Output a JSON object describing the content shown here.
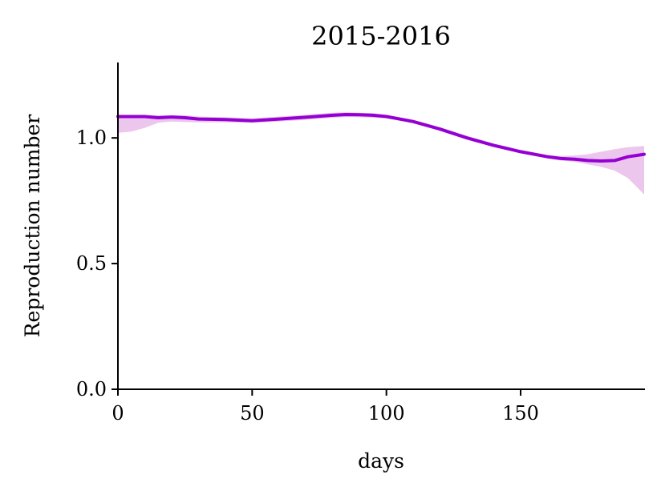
{
  "chart_data": {
    "type": "line",
    "title": "2015-2016",
    "xlabel": "days",
    "ylabel": "Reproduction number",
    "xlim": [
      0,
      196
    ],
    "ylim": [
      0,
      1.3
    ],
    "xticks": [
      0,
      50,
      100,
      150
    ],
    "xtick_labels": [
      "0",
      "50",
      "100",
      "150"
    ],
    "yticks": [
      0.0,
      0.5,
      1.0
    ],
    "ytick_labels": [
      "0.0",
      "0.5",
      "1.0"
    ],
    "grid": false,
    "colors": {
      "line": "#9400d3",
      "band": "#ecc6ec"
    },
    "series": [
      {
        "x": [
          0,
          5,
          10,
          15,
          20,
          25,
          30,
          40,
          50,
          60,
          70,
          80,
          85,
          90,
          95,
          100,
          110,
          120,
          130,
          140,
          150,
          160,
          165,
          170,
          175,
          180,
          185,
          190,
          196
        ],
        "y": [
          1.085,
          1.085,
          1.085,
          1.08,
          1.083,
          1.08,
          1.075,
          1.073,
          1.068,
          1.075,
          1.082,
          1.09,
          1.093,
          1.092,
          1.09,
          1.085,
          1.065,
          1.035,
          1.0,
          0.97,
          0.945,
          0.925,
          0.918,
          0.915,
          0.91,
          0.908,
          0.91,
          0.925,
          0.935
        ],
        "lower": [
          1.02,
          1.025,
          1.04,
          1.06,
          1.065,
          1.063,
          1.062,
          1.062,
          1.06,
          1.065,
          1.072,
          1.08,
          1.083,
          1.082,
          1.08,
          1.078,
          1.06,
          1.03,
          0.995,
          0.965,
          0.94,
          0.918,
          0.91,
          0.905,
          0.895,
          0.885,
          0.87,
          0.84,
          0.775
        ],
        "upper": [
          1.09,
          1.09,
          1.09,
          1.09,
          1.09,
          1.09,
          1.085,
          1.082,
          1.078,
          1.085,
          1.092,
          1.1,
          1.102,
          1.1,
          1.098,
          1.092,
          1.072,
          1.042,
          1.008,
          0.978,
          0.952,
          0.932,
          0.928,
          0.93,
          0.935,
          0.945,
          0.955,
          0.963,
          0.968
        ]
      }
    ]
  }
}
